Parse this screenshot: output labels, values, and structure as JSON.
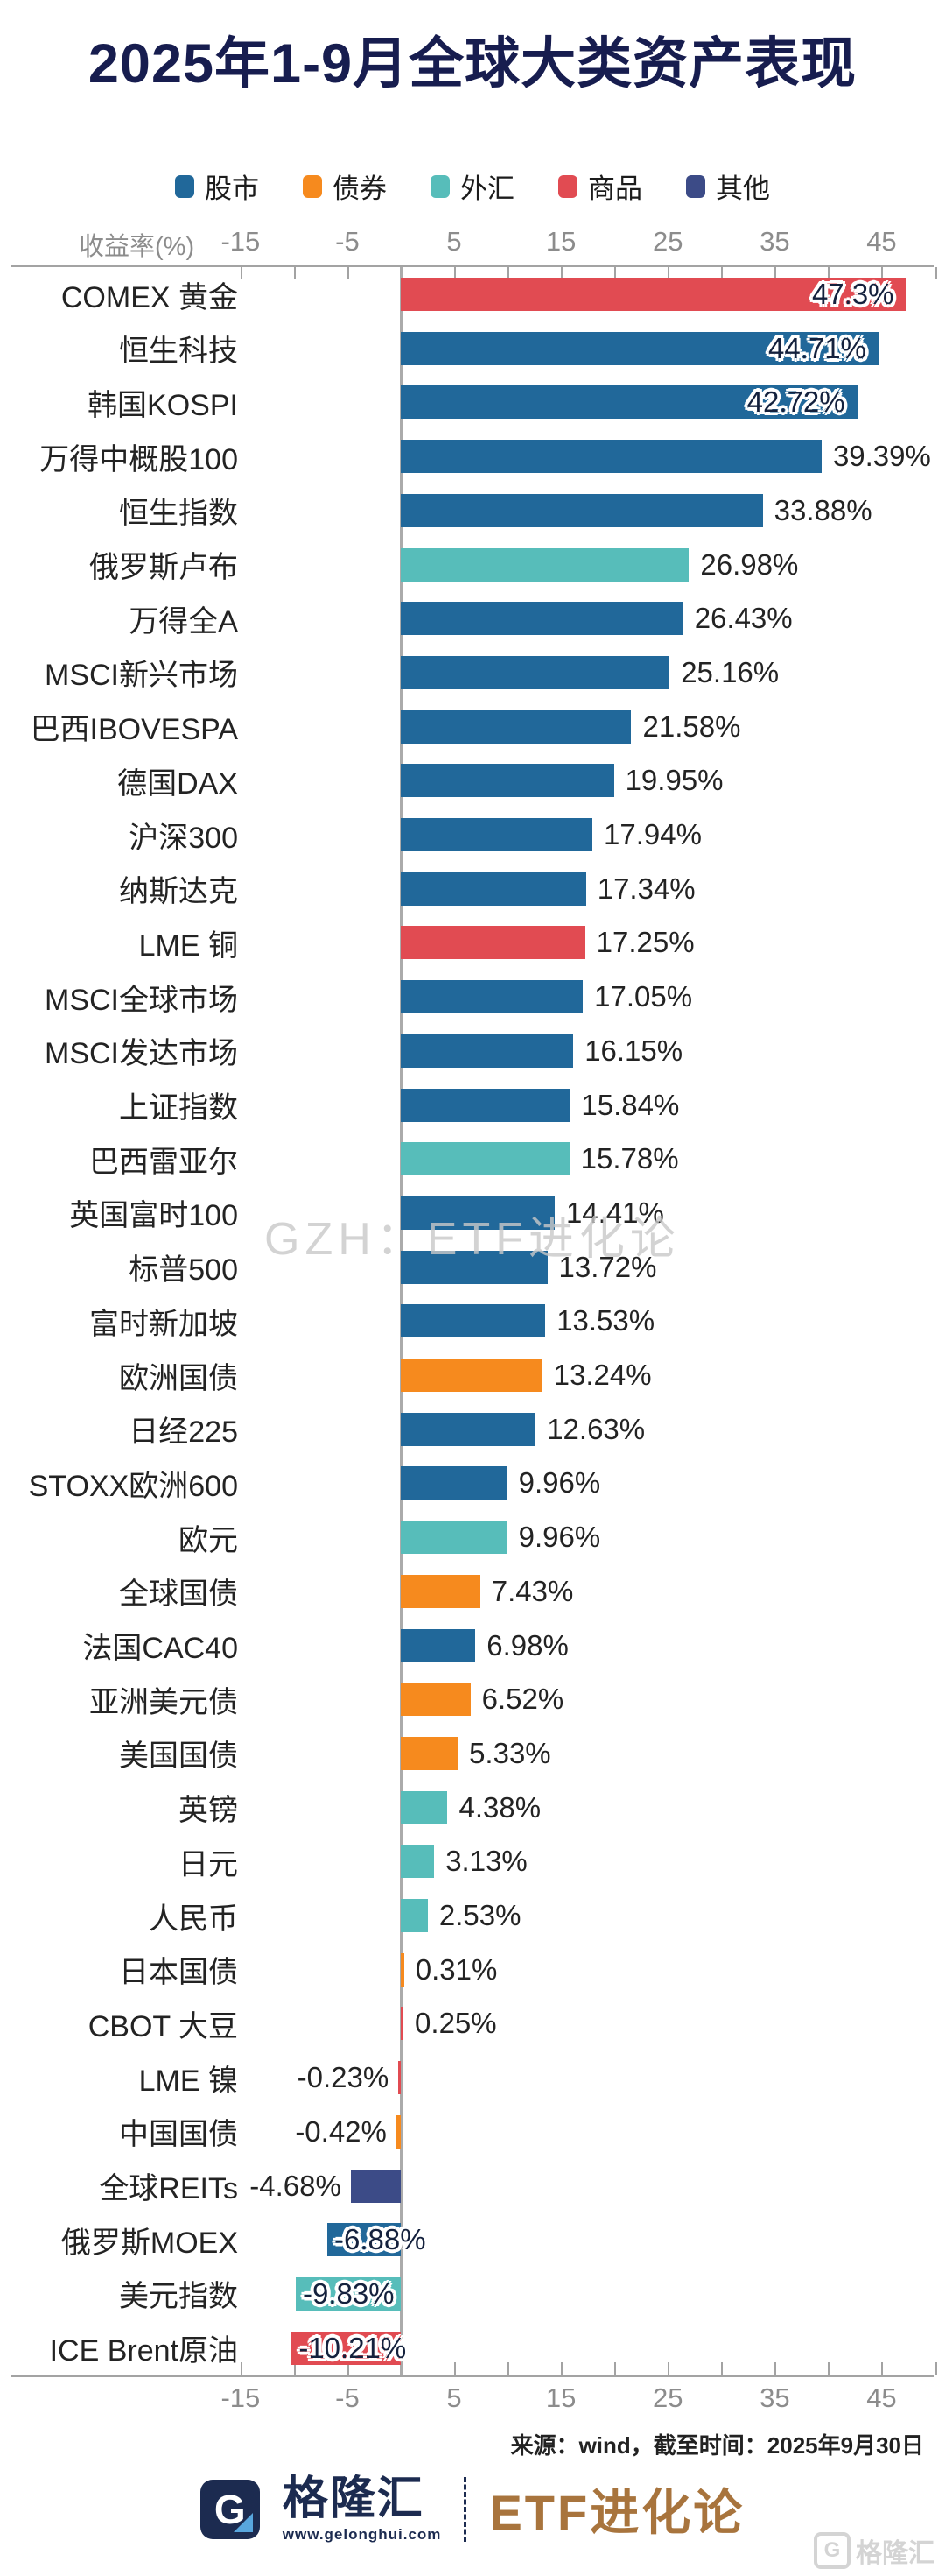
{
  "title": "2025年1-9月全球大类资产表现",
  "legend": [
    {
      "label": "股市",
      "color": "#21689a"
    },
    {
      "label": "债券",
      "color": "#f68a1e"
    },
    {
      "label": "外汇",
      "color": "#57bdba"
    },
    {
      "label": "商品",
      "color": "#e14b52"
    },
    {
      "label": "其他",
      "color": "#3c4b87"
    }
  ],
  "axis": {
    "label": "收益率(%)",
    "labeled_ticks": [
      -15,
      -5,
      5,
      15,
      25,
      35,
      45
    ],
    "minor_ticks": [
      -15,
      -10,
      -5,
      5,
      10,
      15,
      20,
      25,
      30,
      35,
      40,
      45,
      50
    ]
  },
  "chart_data": {
    "type": "bar",
    "orientation": "horizontal",
    "xlabel": "收益率(%)",
    "xlim": [
      -20,
      51
    ],
    "grid": false,
    "legend_position": "top",
    "category_colors": {
      "股市": "#21689a",
      "债券": "#f68a1e",
      "外汇": "#57bdba",
      "商品": "#e14b52",
      "其他": "#3c4b87"
    },
    "bars": [
      {
        "name": "COMEX 黄金",
        "value": 47.3,
        "label": "47.3%",
        "category": "商品",
        "label_pos": "inside"
      },
      {
        "name": "恒生科技",
        "value": 44.71,
        "label": "44.71%",
        "category": "股市",
        "label_pos": "inside"
      },
      {
        "name": "韩国KOSPI",
        "value": 42.72,
        "label": "42.72%",
        "category": "股市",
        "label_pos": "inside"
      },
      {
        "name": "万得中概股100",
        "value": 39.39,
        "label": "39.39%",
        "category": "股市",
        "label_pos": "right"
      },
      {
        "name": "恒生指数",
        "value": 33.88,
        "label": "33.88%",
        "category": "股市",
        "label_pos": "right"
      },
      {
        "name": "俄罗斯卢布",
        "value": 26.98,
        "label": "26.98%",
        "category": "外汇",
        "label_pos": "right"
      },
      {
        "name": "万得全A",
        "value": 26.43,
        "label": "26.43%",
        "category": "股市",
        "label_pos": "right"
      },
      {
        "name": "MSCI新兴市场",
        "value": 25.16,
        "label": "25.16%",
        "category": "股市",
        "label_pos": "right"
      },
      {
        "name": "巴西IBOVESPA",
        "value": 21.58,
        "label": "21.58%",
        "category": "股市",
        "label_pos": "right"
      },
      {
        "name": "德国DAX",
        "value": 19.95,
        "label": "19.95%",
        "category": "股市",
        "label_pos": "right"
      },
      {
        "name": "沪深300",
        "value": 17.94,
        "label": "17.94%",
        "category": "股市",
        "label_pos": "right"
      },
      {
        "name": "纳斯达克",
        "value": 17.34,
        "label": "17.34%",
        "category": "股市",
        "label_pos": "right"
      },
      {
        "name": "LME 铜",
        "value": 17.25,
        "label": "17.25%",
        "category": "商品",
        "label_pos": "right"
      },
      {
        "name": "MSCI全球市场",
        "value": 17.05,
        "label": "17.05%",
        "category": "股市",
        "label_pos": "right"
      },
      {
        "name": "MSCI发达市场",
        "value": 16.15,
        "label": "16.15%",
        "category": "股市",
        "label_pos": "right"
      },
      {
        "name": "上证指数",
        "value": 15.84,
        "label": "15.84%",
        "category": "股市",
        "label_pos": "right"
      },
      {
        "name": "巴西雷亚尔",
        "value": 15.78,
        "label": "15.78%",
        "category": "外汇",
        "label_pos": "right"
      },
      {
        "name": "英国富时100",
        "value": 14.41,
        "label": "14.41%",
        "category": "股市",
        "label_pos": "right"
      },
      {
        "name": "标普500",
        "value": 13.72,
        "label": "13.72%",
        "category": "股市",
        "label_pos": "right"
      },
      {
        "name": "富时新加坡",
        "value": 13.53,
        "label": "13.53%",
        "category": "股市",
        "label_pos": "right"
      },
      {
        "name": "欧洲国债",
        "value": 13.24,
        "label": "13.24%",
        "category": "债券",
        "label_pos": "right"
      },
      {
        "name": "日经225",
        "value": 12.63,
        "label": "12.63%",
        "category": "股市",
        "label_pos": "right"
      },
      {
        "name": "STOXX欧洲600",
        "value": 9.96,
        "label": "9.96%",
        "category": "股市",
        "label_pos": "right"
      },
      {
        "name": "欧元",
        "value": 9.96,
        "label": "9.96%",
        "category": "外汇",
        "label_pos": "right"
      },
      {
        "name": "全球国债",
        "value": 7.43,
        "label": "7.43%",
        "category": "债券",
        "label_pos": "right"
      },
      {
        "name": "法国CAC40",
        "value": 6.98,
        "label": "6.98%",
        "category": "股市",
        "label_pos": "right"
      },
      {
        "name": "亚洲美元债",
        "value": 6.52,
        "label": "6.52%",
        "category": "债券",
        "label_pos": "right"
      },
      {
        "name": "美国国债",
        "value": 5.33,
        "label": "5.33%",
        "category": "债券",
        "label_pos": "right"
      },
      {
        "name": "英镑",
        "value": 4.38,
        "label": "4.38%",
        "category": "外汇",
        "label_pos": "right"
      },
      {
        "name": "日元",
        "value": 3.13,
        "label": "3.13%",
        "category": "外汇",
        "label_pos": "right"
      },
      {
        "name": "人民币",
        "value": 2.53,
        "label": "2.53%",
        "category": "外汇",
        "label_pos": "right"
      },
      {
        "name": "日本国债",
        "value": 0.31,
        "label": "0.31%",
        "category": "债券",
        "label_pos": "right"
      },
      {
        "name": "CBOT 大豆",
        "value": 0.25,
        "label": "0.25%",
        "category": "商品",
        "label_pos": "right"
      },
      {
        "name": "LME 镍",
        "value": -0.23,
        "label": "-0.23%",
        "category": "商品",
        "label_pos": "left"
      },
      {
        "name": "中国国债",
        "value": -0.42,
        "label": "-0.42%",
        "category": "债券",
        "label_pos": "left"
      },
      {
        "name": "全球REITs",
        "value": -4.68,
        "label": "-4.68%",
        "category": "其他",
        "label_pos": "left"
      },
      {
        "name": "俄罗斯MOEX",
        "value": -6.88,
        "label": "-6.88%",
        "category": "股市",
        "label_pos": "inside"
      },
      {
        "name": "美元指数",
        "value": -9.83,
        "label": "-9.83%",
        "category": "外汇",
        "label_pos": "inside"
      },
      {
        "name": "ICE Brent原油",
        "value": -10.21,
        "label": "-10.21%",
        "category": "商品",
        "label_pos": "inside"
      }
    ]
  },
  "watermark": "GZH：ETF进化论",
  "source_note": "来源：wind，截至时间：2025年9月30日",
  "footer": {
    "brand_letter": "G",
    "brand_name": "格隆汇",
    "brand_url": "www.gelonghui.com",
    "partner_brand": "ETF进化论",
    "corner_watermark_letter": "G",
    "corner_watermark_text": "格隆汇"
  }
}
